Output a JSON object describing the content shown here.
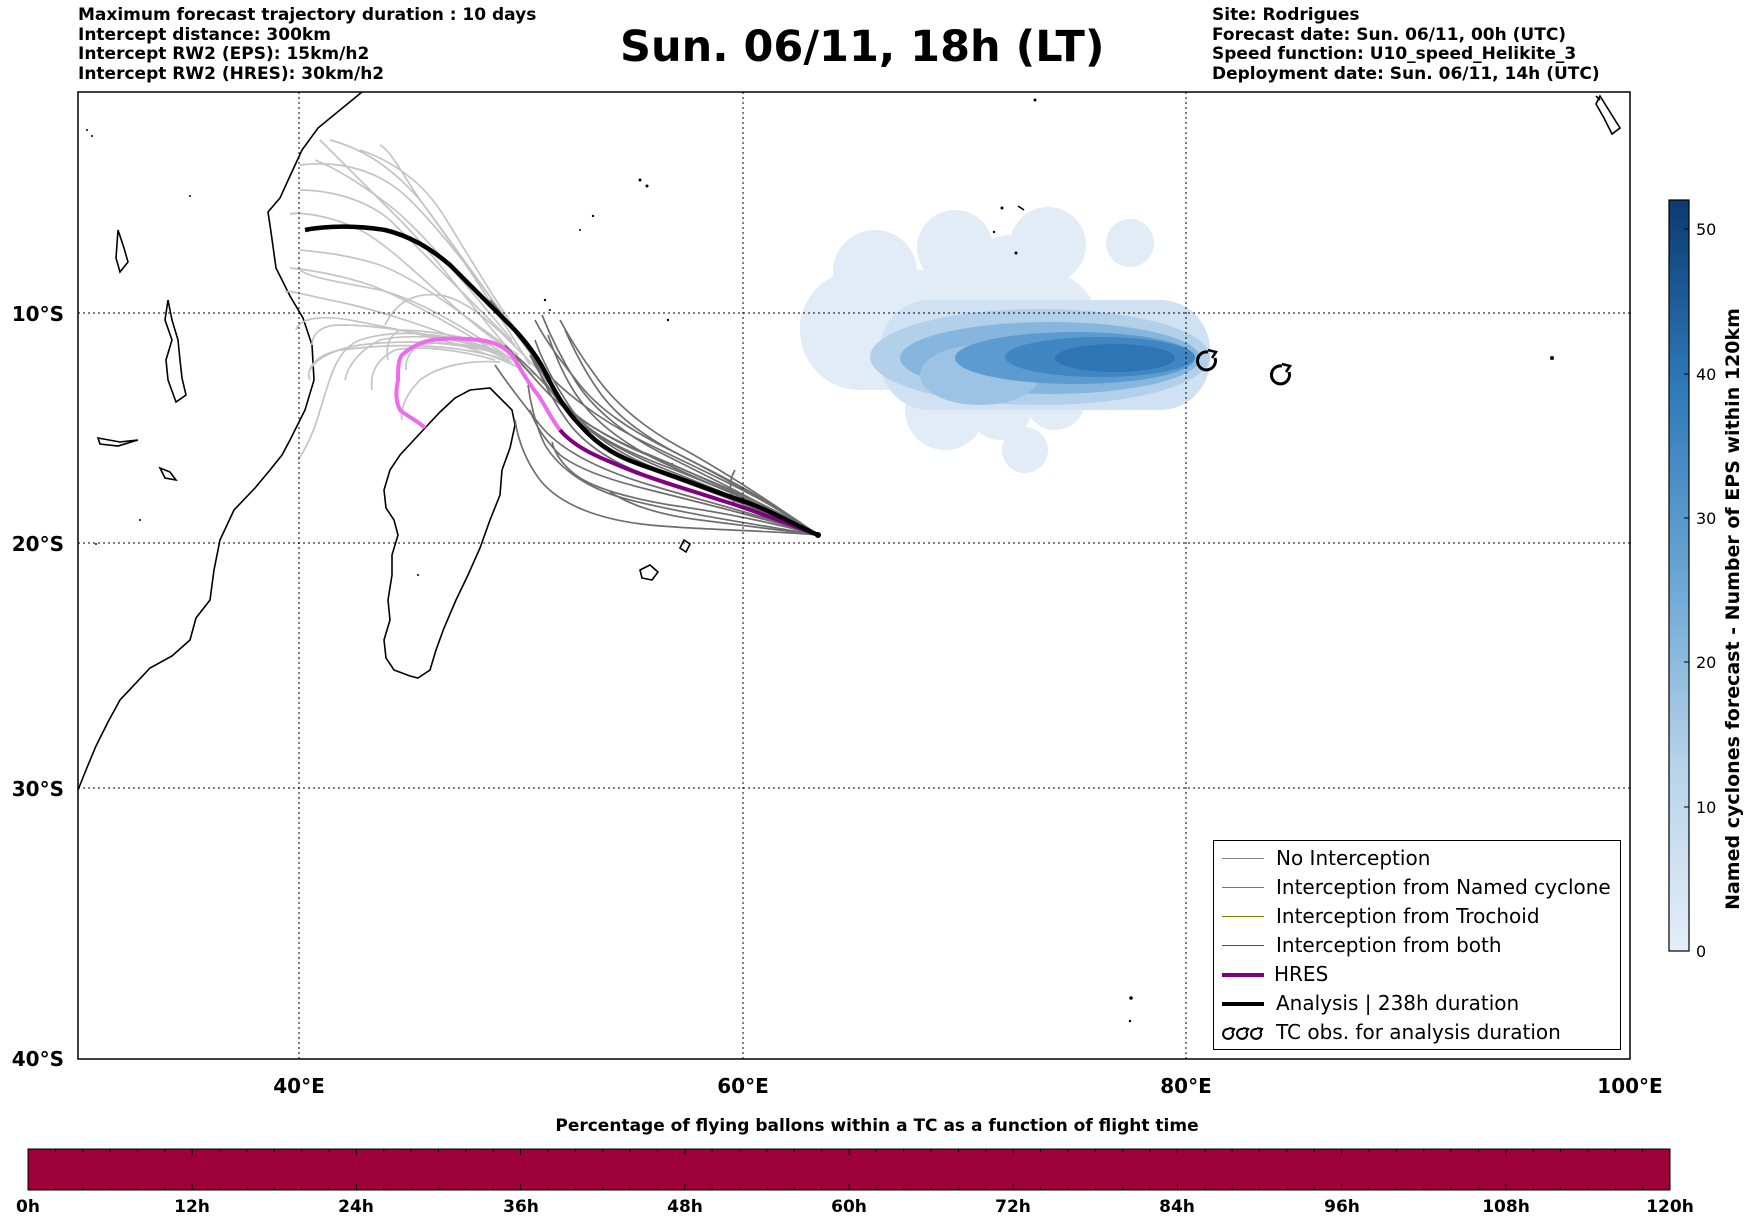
{
  "header": {
    "left_lines": [
      "Maximum forecast trajectory duration : 10 days",
      "Intercept distance: 300km",
      "Intercept RW2 (EPS):  15km/h2",
      "Intercept RW2 (HRES): 30km/h2"
    ],
    "title": "Sun. 06/11, 18h (LT)",
    "right_lines": [
      "Site: Rodrigues",
      "Forecast date: Sun. 06/11, 00h (UTC)",
      "Speed function: U10_speed_Helikite_3",
      "Deployment date: Sun. 06/11, 14h (UTC)"
    ]
  },
  "map": {
    "lat_ticks": [
      "10°S",
      "20°S",
      "30°S",
      "40°S"
    ],
    "lon_ticks": [
      "40°E",
      "60°E",
      "80°E",
      "100°E"
    ],
    "lon_range": [
      30,
      100
    ],
    "lat_range": [
      -40,
      -1
    ],
    "gridlines": "dotted",
    "colors": {
      "no_interception": "#808080",
      "named_cyclone": "#ff4500",
      "trochoid": "#808000",
      "both": "#008000",
      "hres": "#800080",
      "hres_highlight": "#ee6aee",
      "analysis": "#000000",
      "density": "#1f6fb4"
    }
  },
  "legend": {
    "items": [
      {
        "label": "No Interception",
        "color": "#808080",
        "width": 1.5
      },
      {
        "label": "Interception from Named cyclone",
        "color": "#ff4500",
        "width": 1.5
      },
      {
        "label": "Interception from Trochoid",
        "color": "#808000",
        "width": 1.5
      },
      {
        "label": "Interception from both",
        "color": "#008000",
        "width": 1.5
      },
      {
        "label": "HRES",
        "color": "#800080",
        "width": 4
      },
      {
        "label": "Analysis | 238h duration",
        "color": "#000000",
        "width": 4
      },
      {
        "label": "TC obs. for analysis duration",
        "color": "#000000",
        "icon": "cyclone-symbols"
      }
    ]
  },
  "colorbar": {
    "label": "Named cyclones forecast - Number of EPS within 120km",
    "ticks": [
      "0",
      "10",
      "20",
      "30",
      "40",
      "50"
    ],
    "min": 0,
    "max": 52,
    "color_low": "#e4eef8",
    "color_high": "#0b3a70"
  },
  "bottom_bar": {
    "title": "Percentage of flying ballons within a TC as a function of flight time",
    "ticks": [
      "0h",
      "12h",
      "24h",
      "36h",
      "48h",
      "60h",
      "72h",
      "84h",
      "96h",
      "108h",
      "120h"
    ],
    "fill_color": "#9e003a"
  }
}
